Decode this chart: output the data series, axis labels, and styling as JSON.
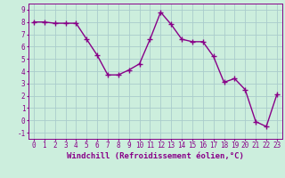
{
  "xlabel": "Windchill (Refroidissement éolien,°C)",
  "x": [
    0,
    1,
    2,
    3,
    4,
    5,
    6,
    7,
    8,
    9,
    10,
    11,
    12,
    13,
    14,
    15,
    16,
    17,
    18,
    19,
    20,
    21,
    22,
    23
  ],
  "y": [
    8.0,
    8.0,
    7.9,
    7.9,
    7.9,
    6.6,
    5.3,
    3.7,
    3.7,
    4.1,
    4.6,
    6.6,
    8.8,
    7.8,
    6.6,
    6.4,
    6.4,
    5.2,
    3.1,
    3.4,
    2.5,
    -0.1,
    -0.5,
    2.1
  ],
  "line_color": "#880088",
  "marker": "+",
  "marker_size": 4,
  "marker_linewidth": 1.0,
  "bg_color": "#cceedd",
  "grid_color": "#aacccc",
  "ylim": [
    -1.5,
    9.5
  ],
  "xlim": [
    -0.5,
    23.5
  ],
  "yticks": [
    -1,
    0,
    1,
    2,
    3,
    4,
    5,
    6,
    7,
    8,
    9
  ],
  "xticks": [
    0,
    1,
    2,
    3,
    4,
    5,
    6,
    7,
    8,
    9,
    10,
    11,
    12,
    13,
    14,
    15,
    16,
    17,
    18,
    19,
    20,
    21,
    22,
    23
  ],
  "tick_label_fontsize": 5.5,
  "xlabel_fontsize": 6.5,
  "line_width": 1.0
}
